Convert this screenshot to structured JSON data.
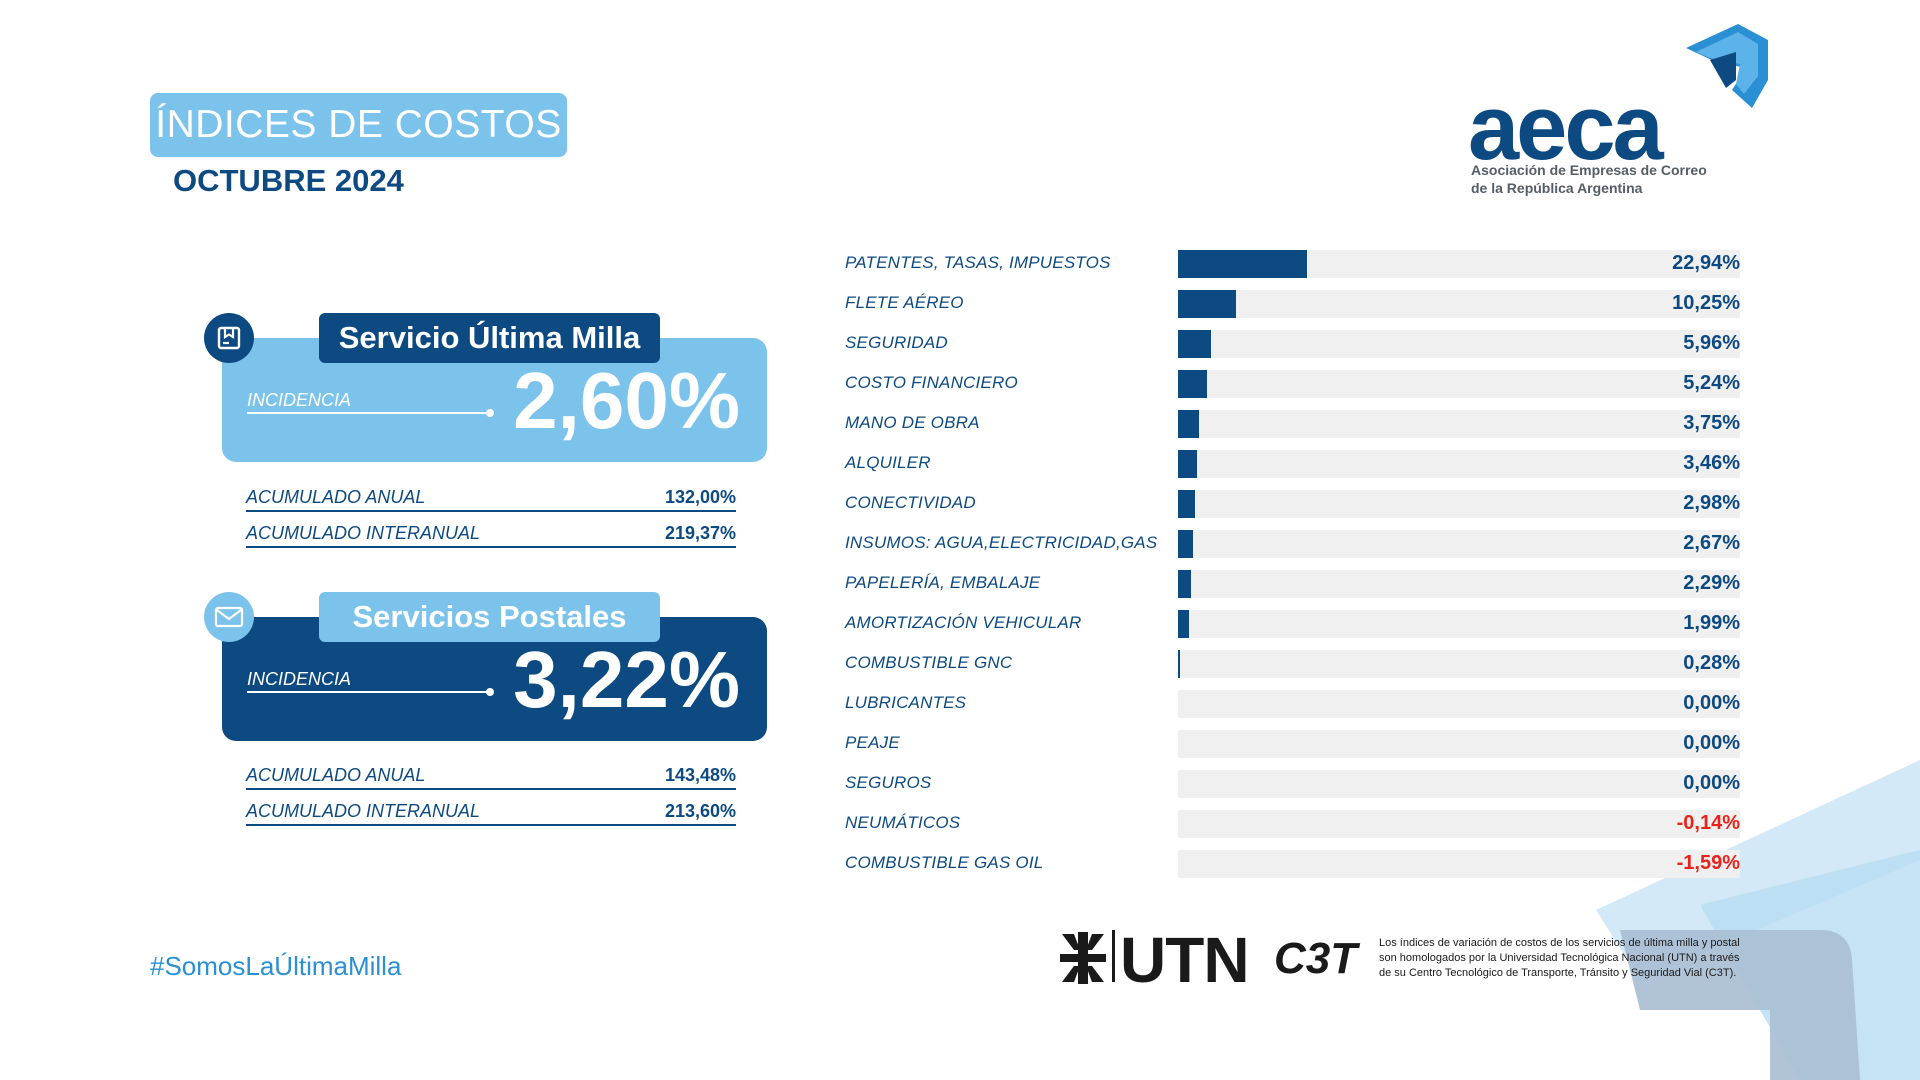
{
  "header": {
    "title": "ÍNDICES DE COSTOS",
    "subtitle": "OCTUBRE 2024"
  },
  "logo": {
    "word": "aeca",
    "sub_line1": "Asociación de Empresas de Correo",
    "sub_line2": "de la República Argentina"
  },
  "services": [
    {
      "name": "Servicio Última Milla",
      "icon": "package-icon",
      "incidencia_label": "INCIDENCIA",
      "incidencia_value": "2,60%",
      "rows": [
        {
          "label": "ACUMULADO ANUAL",
          "value": "132,00%"
        },
        {
          "label": "ACUMULADO INTERANUAL",
          "value": "219,37%"
        }
      ]
    },
    {
      "name": "Servicios Postales",
      "icon": "envelope-icon",
      "incidencia_label": "INCIDENCIA",
      "incidencia_value": "3,22%",
      "rows": [
        {
          "label": "ACUMULADO ANUAL",
          "value": "143,48%"
        },
        {
          "label": "ACUMULADO INTERANUAL",
          "value": "213,60%"
        }
      ]
    }
  ],
  "hashtag": "#SomosLaÚltimaMilla",
  "chart_data": {
    "type": "bar",
    "orientation": "horizontal",
    "xlim": [
      0,
      100
    ],
    "categories": [
      "PATENTES, TASAS, IMPUESTOS",
      "FLETE AÉREO",
      "SEGURIDAD",
      "COSTO FINANCIERO",
      "MANO DE OBRA",
      "ALQUILER",
      "CONECTIVIDAD",
      "INSUMOS: AGUA,ELECTRICIDAD,GAS",
      "PAPELERÍA, EMBALAJE",
      "AMORTIZACIÓN VEHICULAR",
      "COMBUSTIBLE GNC",
      "LUBRICANTES",
      "PEAJE",
      "SEGUROS",
      "NEUMÁTICOS",
      "COMBUSTIBLE GAS OIL"
    ],
    "values": [
      22.94,
      10.25,
      5.96,
      5.24,
      3.75,
      3.46,
      2.98,
      2.67,
      2.29,
      1.99,
      0.28,
      0.0,
      0.0,
      0.0,
      -0.14,
      -1.59
    ],
    "value_labels": [
      "22,94%",
      "10,25%",
      "5,96%",
      "5,24%",
      "3,75%",
      "3,46%",
      "2,98%",
      "2,67%",
      "2,29%",
      "1,99%",
      "0,28%",
      "0,00%",
      "0,00%",
      "0,00%",
      "-0,14%",
      "-1,59%"
    ],
    "colors": {
      "bar": "#0d4a82",
      "track": "#f0f0f0",
      "negative": "#e8231c"
    }
  },
  "footer": {
    "utn": "UTN",
    "c3t": "C3T",
    "note_line1": "Los índices de variación de costos de los servicios de última milla y postal",
    "note_line2": "son homologados por la Universidad Tecnológica Nacional (UTN) a través",
    "note_line3": "de su Centro Tecnológico de Transporte, Tránsito y Seguridad Vial (C3T)."
  },
  "colors": {
    "primary": "#0d4a82",
    "accent": "#7cc3ec",
    "hashtag": "#2a8fd3"
  }
}
